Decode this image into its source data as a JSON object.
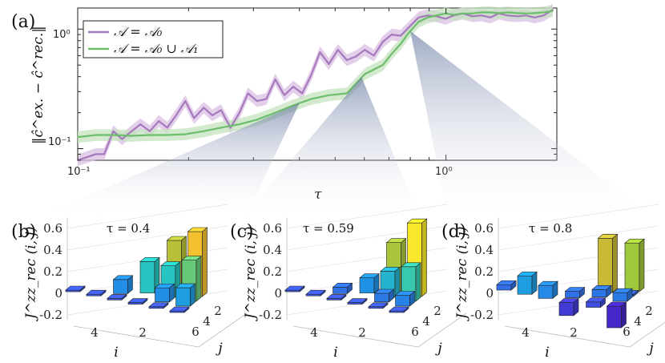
{
  "chart_data": [
    {
      "panel": "(a)",
      "type": "line",
      "xlabel": "τ",
      "ylabel": "‖ĉ^ex. − ĉ^rec.‖",
      "xscale": "log",
      "yscale": "log",
      "xlim": [
        0.1,
        2.0
      ],
      "ylim": [
        0.08,
        1.5
      ],
      "xticks": [
        "10⁻¹",
        "10⁰"
      ],
      "yticks": [
        "10⁻¹",
        "10⁰"
      ],
      "legend_position": "top-left",
      "series": [
        {
          "name": "𝒜 = 𝒜₀",
          "color": "#a678bd",
          "band_color": "#d9bfe3",
          "x": [
            0.1,
            0.106,
            0.112,
            0.118,
            0.125,
            0.132,
            0.14,
            0.148,
            0.157,
            0.166,
            0.175,
            0.185,
            0.196,
            0.207,
            0.22,
            0.232,
            0.245,
            0.26,
            0.275,
            0.29,
            0.307,
            0.325,
            0.344,
            0.364,
            0.385,
            0.407,
            0.43,
            0.455,
            0.481,
            0.509,
            0.538,
            0.569,
            0.602,
            0.637,
            0.673,
            0.712,
            0.753,
            0.797,
            0.843,
            0.891,
            0.942,
            0.997,
            1.05,
            1.11,
            1.18,
            1.25,
            1.32,
            1.39,
            1.47,
            1.56,
            1.65,
            1.74,
            1.84,
            1.95
          ],
          "y": [
            0.08,
            0.085,
            0.09,
            0.09,
            0.14,
            0.12,
            0.14,
            0.16,
            0.14,
            0.17,
            0.15,
            0.19,
            0.25,
            0.18,
            0.22,
            0.19,
            0.21,
            0.15,
            0.2,
            0.29,
            0.25,
            0.26,
            0.38,
            0.28,
            0.33,
            0.29,
            0.41,
            0.64,
            0.51,
            0.67,
            0.55,
            0.59,
            0.67,
            0.6,
            0.78,
            0.9,
            0.88,
            1.05,
            1.25,
            1.3,
            1.28,
            1.22,
            1.3,
            1.35,
            1.28,
            1.3,
            1.25,
            1.35,
            1.3,
            1.28,
            1.3,
            1.25,
            1.3,
            1.45
          ]
        },
        {
          "name": "𝒜 = 𝒜₀ ∪ 𝒜₁",
          "color": "#6cbd6c",
          "band_color": "#c4e3bf",
          "x": [
            0.1,
            0.112,
            0.125,
            0.14,
            0.157,
            0.175,
            0.196,
            0.22,
            0.245,
            0.275,
            0.307,
            0.344,
            0.385,
            0.43,
            0.481,
            0.538,
            0.602,
            0.673,
            0.712,
            0.753,
            0.797,
            0.843,
            0.891,
            0.942,
            0.997,
            1.05,
            1.11,
            1.18,
            1.25,
            1.32,
            1.39,
            1.47,
            1.56,
            1.65,
            1.74,
            1.84,
            1.95
          ],
          "y": [
            0.125,
            0.13,
            0.13,
            0.128,
            0.13,
            0.13,
            0.132,
            0.14,
            0.15,
            0.16,
            0.175,
            0.2,
            0.23,
            0.26,
            0.28,
            0.29,
            0.42,
            0.5,
            0.62,
            0.75,
            0.95,
            1.15,
            1.25,
            1.3,
            1.35,
            1.32,
            1.35,
            1.35,
            1.38,
            1.38,
            1.36,
            1.38,
            1.36,
            1.35,
            1.36,
            1.38,
            1.42
          ]
        }
      ]
    },
    {
      "panel": "(b)",
      "type": "bar3d",
      "title": "τ = 0.4",
      "zlabel": "J^zz_rec (i, j)",
      "xlabel": "i",
      "ylabel": "j",
      "zlim": [
        -0.2,
        0.7
      ],
      "zticks": [
        "0.6",
        "0.4",
        "0.2",
        "0",
        "-0.2"
      ],
      "iticks": [
        "4",
        "2"
      ],
      "jticks": [
        "6",
        "4",
        "2"
      ],
      "bars": [
        {
          "i": 6,
          "j": 1,
          "v": 0.0
        },
        {
          "i": 5,
          "j": 1,
          "v": 0.0
        },
        {
          "i": 4,
          "j": 1,
          "v": 0.0
        },
        {
          "i": 3,
          "j": 1,
          "v": 0.0
        },
        {
          "i": 2,
          "j": 1,
          "v": 0.0
        },
        {
          "i": 1,
          "j": 1,
          "v": 0.0
        },
        {
          "i": 4,
          "j": 2,
          "v": 0.13
        },
        {
          "i": 2,
          "j": 2,
          "v": 0.13
        },
        {
          "i": 1,
          "j": 2,
          "v": 0.17
        },
        {
          "i": 3,
          "j": 3,
          "v": 0.29
        },
        {
          "i": 2,
          "j": 3,
          "v": 0.29
        },
        {
          "i": 1,
          "j": 3,
          "v": 0.38
        },
        {
          "i": 2,
          "j": 4,
          "v": 0.48
        },
        {
          "i": 1,
          "j": 4,
          "v": 0.6
        }
      ]
    },
    {
      "panel": "(c)",
      "type": "bar3d",
      "title": "τ = 0.59",
      "zlabel": "J^zz_rec (i, j)",
      "xlabel": "i",
      "ylabel": "j",
      "zlim": [
        -0.2,
        0.7
      ],
      "zticks": [
        "0.6",
        "0.4",
        "0.2",
        "0",
        "-0.2"
      ],
      "iticks": [
        "4",
        "2"
      ],
      "jticks": [
        "6",
        "4",
        "2"
      ],
      "bars": [
        {
          "i": 6,
          "j": 1,
          "v": 0.0
        },
        {
          "i": 5,
          "j": 1,
          "v": 0.0
        },
        {
          "i": 4,
          "j": 1,
          "v": 0.0
        },
        {
          "i": 3,
          "j": 1,
          "v": 0.0
        },
        {
          "i": 2,
          "j": 1,
          "v": 0.0
        },
        {
          "i": 1,
          "j": 1,
          "v": 0.0
        },
        {
          "i": 4,
          "j": 2,
          "v": 0.06
        },
        {
          "i": 2,
          "j": 2,
          "v": 0.08
        },
        {
          "i": 1,
          "j": 2,
          "v": 0.1
        },
        {
          "i": 3,
          "j": 3,
          "v": 0.14
        },
        {
          "i": 2,
          "j": 3,
          "v": 0.24
        },
        {
          "i": 1,
          "j": 3,
          "v": 0.32
        },
        {
          "i": 2,
          "j": 4,
          "v": 0.46
        },
        {
          "i": 1,
          "j": 4,
          "v": 0.68
        }
      ]
    },
    {
      "panel": "(d)",
      "type": "bar3d",
      "title": "τ = 0.8",
      "zlabel": "J^zz_rec (i, j)",
      "xlabel": "i",
      "ylabel": "j",
      "zlim": [
        -0.2,
        0.7
      ],
      "zticks": [
        "0.6",
        "0.4",
        "0.2",
        "0",
        "-0.2"
      ],
      "iticks": [
        "4",
        "2"
      ],
      "jticks": [
        "6",
        "4",
        "2"
      ],
      "bars": [
        {
          "i": 6,
          "j": 1,
          "v": 0.05
        },
        {
          "i": 5,
          "j": 1,
          "v": 0.17
        },
        {
          "i": 4,
          "j": 1,
          "v": 0.12
        },
        {
          "i": 3,
          "j": 2,
          "v": 0.06
        },
        {
          "i": 3,
          "j": 1,
          "v": -0.12
        },
        {
          "i": 2,
          "j": 2,
          "v": -0.05
        },
        {
          "i": 2,
          "j": 3,
          "v": 0.07
        },
        {
          "i": 1,
          "j": 2,
          "v": -0.2
        },
        {
          "i": 2,
          "j": 4,
          "v": 0.5
        },
        {
          "i": 1,
          "j": 3,
          "v": 0.08
        },
        {
          "i": 1,
          "j": 4,
          "v": 0.02
        },
        {
          "i": 1,
          "j": 5,
          "v": 0.45
        }
      ]
    }
  ]
}
